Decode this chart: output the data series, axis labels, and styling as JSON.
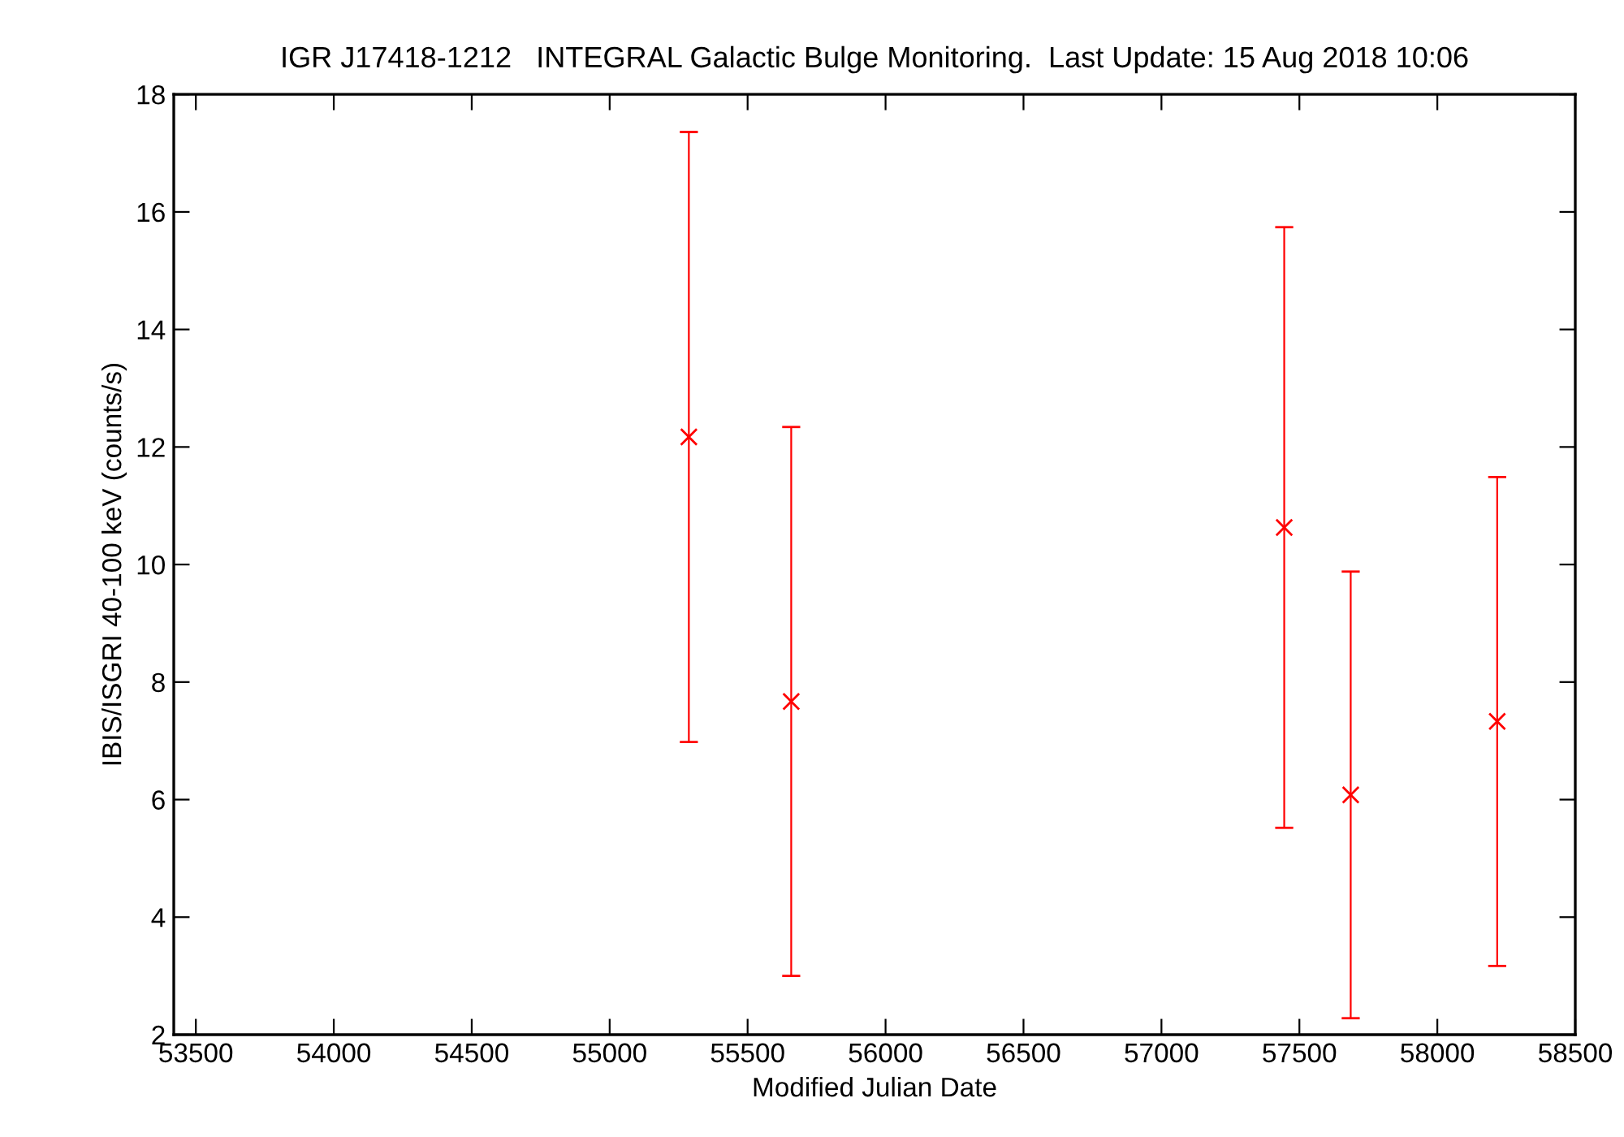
{
  "chart_data": {
    "type": "scatter",
    "title": "IGR J17418-1212   INTEGRAL Galactic Bulge Monitoring.  Last Update: 15 Aug 2018 10:06",
    "xlabel": "Modified Julian Date",
    "ylabel": "IBIS/ISGRI 40-100 keV (counts/s)",
    "x": [
      55287,
      55658,
      57445,
      57686,
      58217
    ],
    "series": [
      {
        "color": "#ff0000",
        "values": [
          12.17,
          7.67,
          10.63,
          6.08,
          7.33
        ],
        "errors": [
          5.19,
          4.67,
          5.11,
          3.8,
          4.16
        ]
      }
    ],
    "marker": "cross",
    "xlim": [
      53420,
      58500
    ],
    "xticks": [
      53500,
      54000,
      54500,
      55000,
      55500,
      56000,
      56500,
      57000,
      57500,
      58000,
      58500
    ],
    "ylim": [
      2,
      18
    ],
    "yticks": [
      2,
      4,
      6,
      8,
      10,
      12,
      14,
      16,
      18
    ],
    "grid": false,
    "legend": false
  }
}
